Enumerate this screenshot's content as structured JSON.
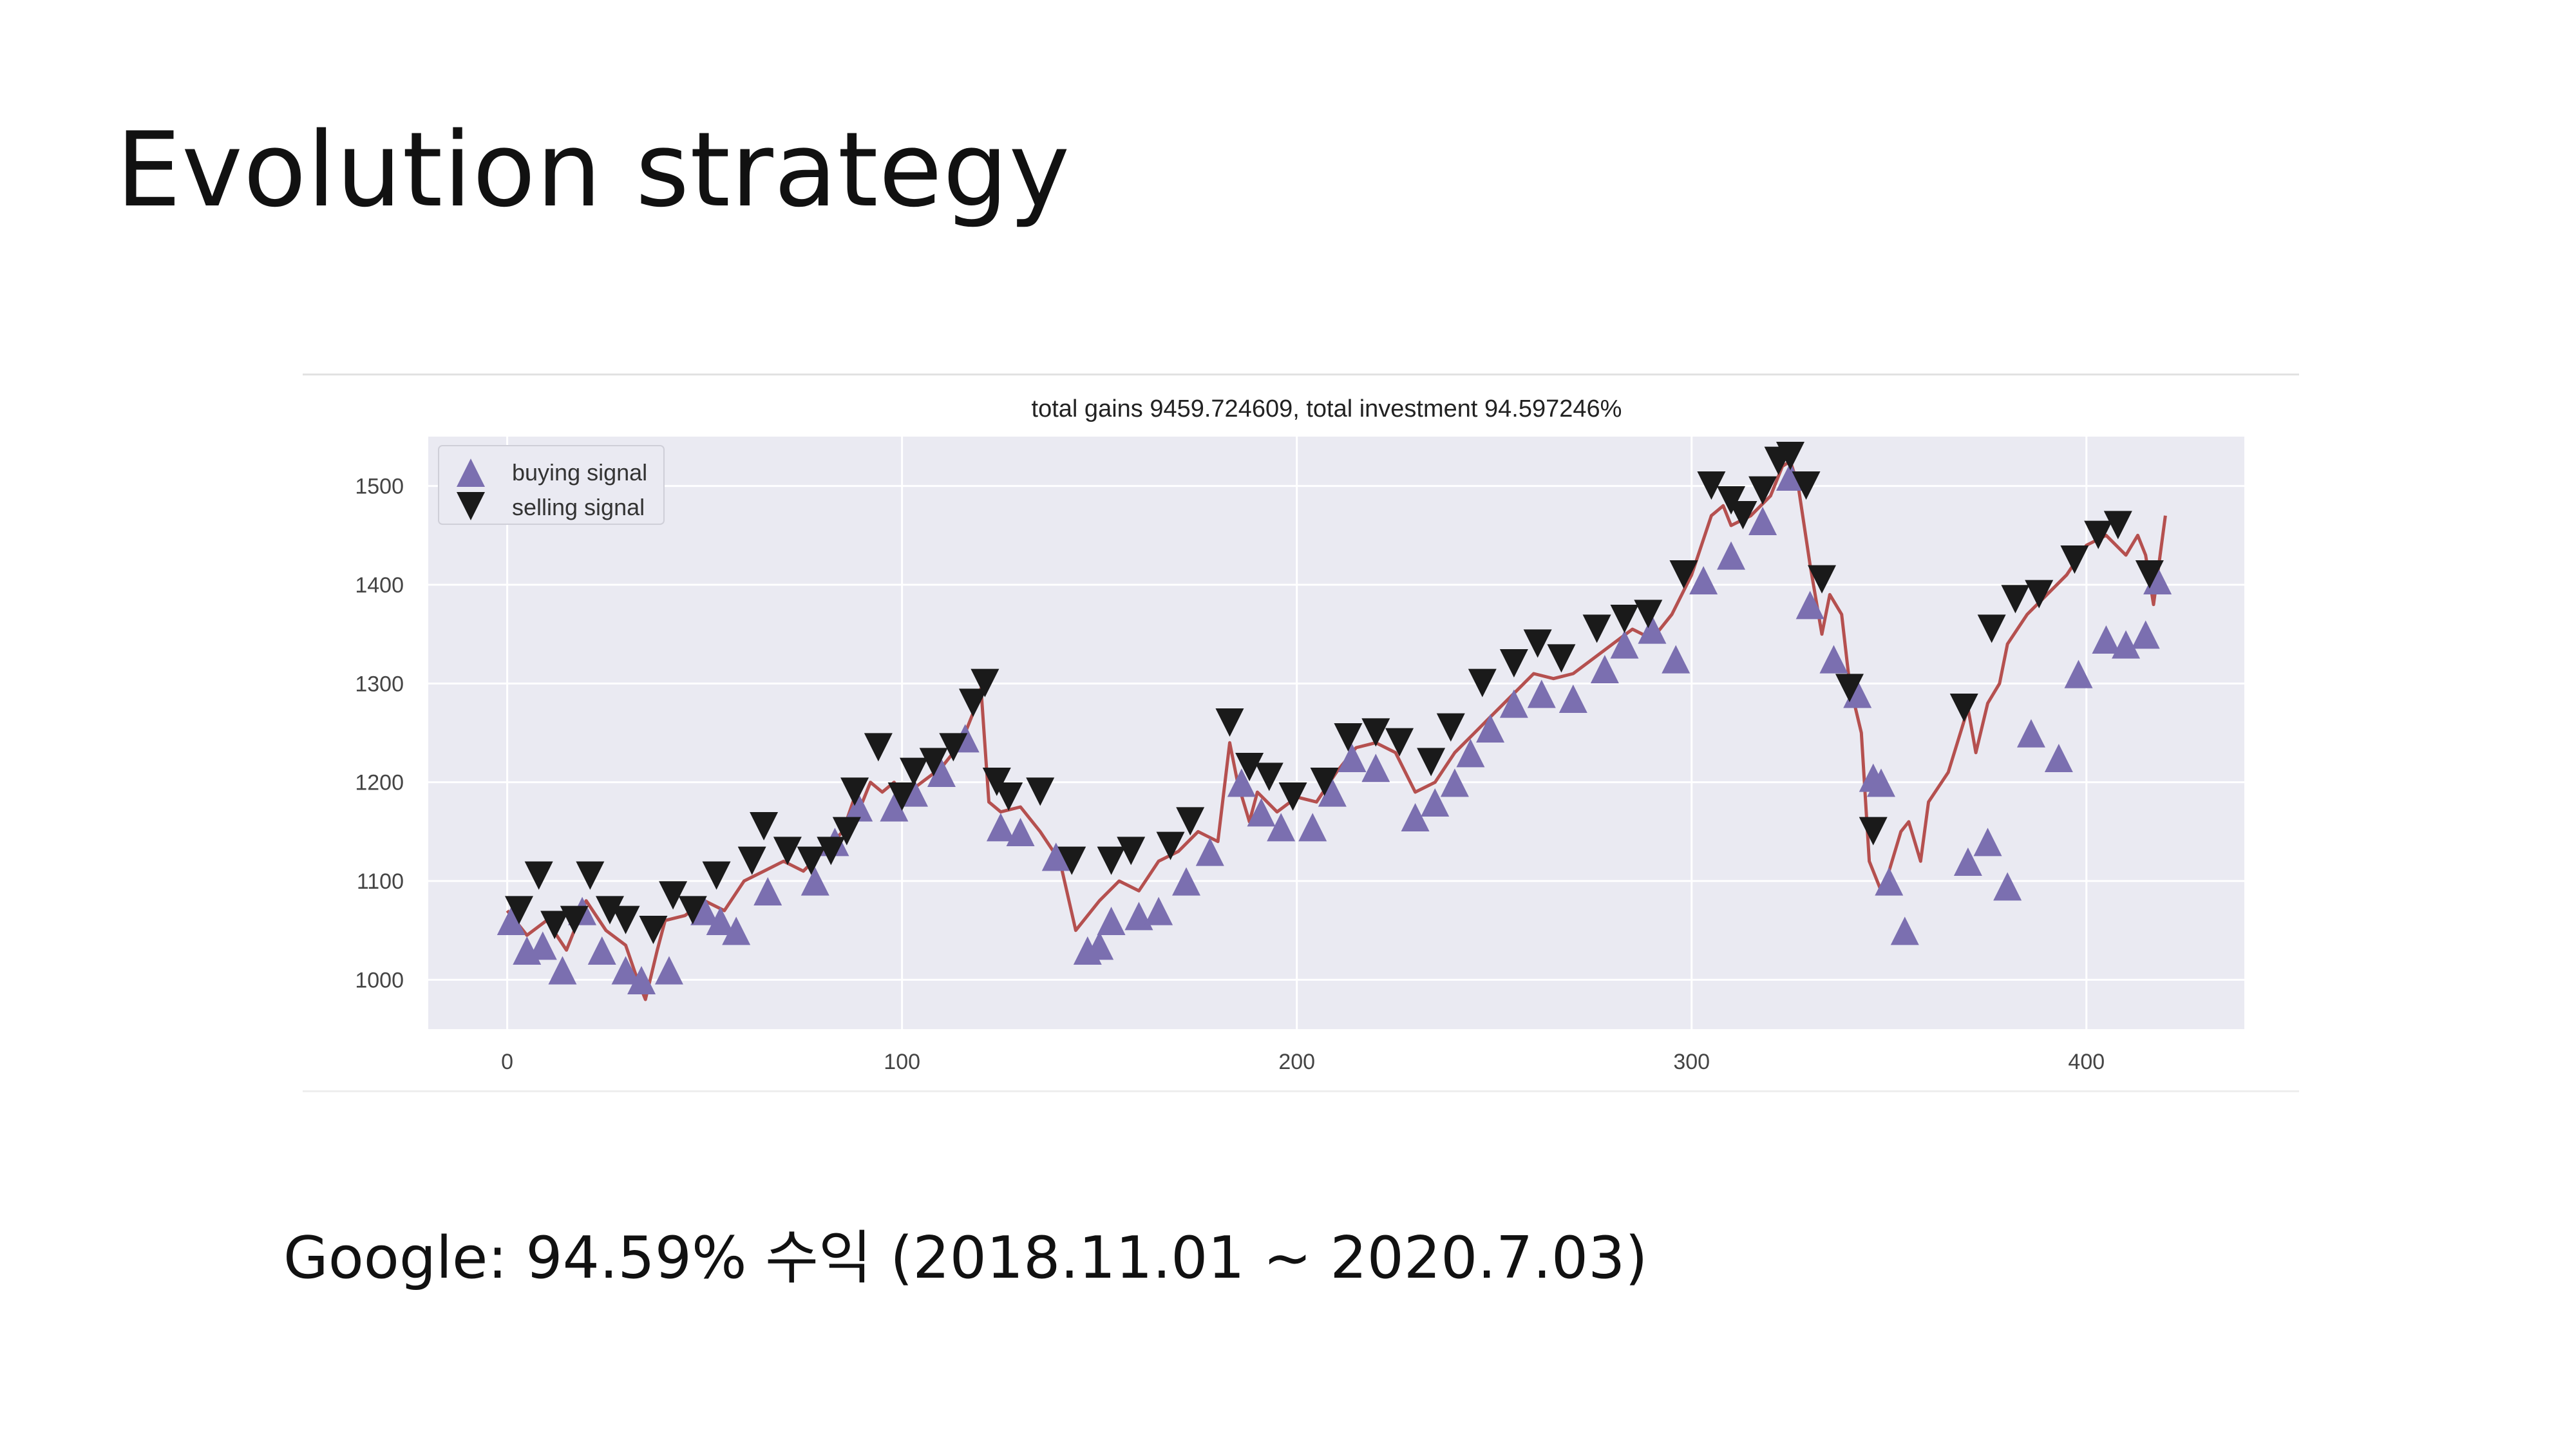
{
  "slide": {
    "title": "Evolution strategy",
    "caption": "Google: 94.59% 수익 (2018.11.01 ~ 2020.7.03)"
  },
  "chart_data": {
    "type": "line",
    "title": "total gains 9459.724609, total investment 94.597246%",
    "xlabel": "",
    "ylabel": "",
    "xlim": [
      -20,
      440
    ],
    "ylim": [
      950,
      1550
    ],
    "xticks": [
      0,
      100,
      200,
      300,
      400
    ],
    "yticks": [
      1000,
      1100,
      1200,
      1300,
      1400,
      1500
    ],
    "grid": true,
    "legend_position": "top-left",
    "colors": {
      "price_line": "#b5504f",
      "buy_marker": "#7b6fb0",
      "sell_marker": "#1a1a1a",
      "plot_bg": "#eaeaf2",
      "grid": "#ffffff"
    },
    "series": [
      {
        "kind": "price",
        "x": [
          0,
          5,
          10,
          15,
          20,
          25,
          30,
          33,
          35,
          38,
          40,
          45,
          50,
          55,
          60,
          65,
          70,
          75,
          80,
          85,
          88,
          90,
          92,
          95,
          98,
          100,
          105,
          110,
          115,
          118,
          120,
          122,
          125,
          130,
          135,
          140,
          144,
          146,
          150,
          155,
          160,
          165,
          170,
          175,
          180,
          183,
          185,
          188,
          190,
          195,
          200,
          205,
          210,
          215,
          220,
          225,
          230,
          235,
          240,
          245,
          250,
          255,
          260,
          265,
          270,
          275,
          280,
          285,
          290,
          295,
          300,
          305,
          308,
          310,
          315,
          320,
          323,
          325,
          327,
          330,
          333,
          335,
          338,
          340,
          343,
          345,
          348,
          350,
          353,
          355,
          358,
          360,
          365,
          370,
          372,
          375,
          378,
          380,
          385,
          390,
          395,
          400,
          405,
          410,
          413,
          415,
          417,
          420
        ],
        "y": [
          1070,
          1045,
          1060,
          1030,
          1080,
          1050,
          1035,
          1000,
          980,
          1030,
          1060,
          1065,
          1080,
          1070,
          1100,
          1110,
          1120,
          1110,
          1130,
          1150,
          1185,
          1180,
          1200,
          1190,
          1200,
          1185,
          1200,
          1215,
          1240,
          1270,
          1295,
          1180,
          1170,
          1175,
          1150,
          1120,
          1050,
          1060,
          1080,
          1100,
          1090,
          1120,
          1130,
          1150,
          1140,
          1240,
          1200,
          1160,
          1190,
          1170,
          1185,
          1180,
          1210,
          1235,
          1240,
          1230,
          1190,
          1200,
          1230,
          1250,
          1270,
          1290,
          1310,
          1305,
          1310,
          1325,
          1340,
          1355,
          1345,
          1370,
          1410,
          1470,
          1480,
          1460,
          1470,
          1490,
          1520,
          1525,
          1500,
          1420,
          1350,
          1390,
          1370,
          1300,
          1250,
          1120,
          1090,
          1110,
          1150,
          1160,
          1120,
          1180,
          1210,
          1275,
          1230,
          1280,
          1300,
          1340,
          1370,
          1390,
          1410,
          1440,
          1450,
          1430,
          1450,
          1430,
          1380,
          1470
        ]
      },
      {
        "name": "buying signal",
        "marker": "triangle-up",
        "x": [
          1,
          5,
          9,
          14,
          19,
          24,
          30,
          34,
          41,
          50,
          54,
          58,
          66,
          78,
          83,
          89,
          98,
          103,
          110,
          116,
          125,
          130,
          139,
          147,
          150,
          153,
          160,
          165,
          172,
          178,
          186,
          191,
          196,
          204,
          209,
          214,
          220,
          230,
          235,
          240,
          244,
          249,
          255,
          262,
          270,
          278,
          283,
          290,
          296,
          303,
          310,
          318,
          325,
          330,
          336,
          342,
          346,
          348,
          350,
          354,
          370,
          375,
          380,
          386,
          393,
          398,
          405,
          410,
          415,
          418
        ],
        "y": [
          1070,
          1040,
          1045,
          1020,
          1080,
          1040,
          1020,
          1010,
          1020,
          1080,
          1070,
          1060,
          1100,
          1110,
          1150,
          1185,
          1185,
          1200,
          1220,
          1255,
          1165,
          1160,
          1135,
          1040,
          1045,
          1070,
          1075,
          1080,
          1110,
          1140,
          1210,
          1180,
          1165,
          1165,
          1200,
          1235,
          1225,
          1175,
          1190,
          1210,
          1240,
          1265,
          1290,
          1300,
          1295,
          1325,
          1350,
          1365,
          1335,
          1415,
          1440,
          1475,
          1520,
          1390,
          1335,
          1300,
          1215,
          1210,
          1110,
          1060,
          1130,
          1150,
          1105,
          1260,
          1235,
          1320,
          1355,
          1350,
          1360,
          1415
        ]
      },
      {
        "name": "selling signal",
        "marker": "triangle-down",
        "x": [
          3,
          8,
          12,
          17,
          21,
          26,
          30,
          37,
          42,
          47,
          53,
          62,
          65,
          71,
          77,
          82,
          86,
          88,
          94,
          100,
          103,
          108,
          113,
          118,
          121,
          124,
          127,
          135,
          143,
          153,
          158,
          168,
          173,
          183,
          188,
          193,
          199,
          207,
          213,
          220,
          226,
          234,
          239,
          247,
          255,
          261,
          267,
          276,
          283,
          289,
          298,
          305,
          310,
          313,
          318,
          322,
          325,
          329,
          333,
          340,
          346,
          369,
          376,
          382,
          388,
          397,
          403,
          408,
          416
        ],
        "y": [
          1060,
          1095,
          1045,
          1050,
          1095,
          1060,
          1050,
          1040,
          1075,
          1060,
          1095,
          1110,
          1145,
          1120,
          1110,
          1120,
          1140,
          1180,
          1225,
          1175,
          1200,
          1210,
          1225,
          1270,
          1290,
          1190,
          1175,
          1180,
          1110,
          1110,
          1120,
          1125,
          1150,
          1250,
          1205,
          1195,
          1175,
          1190,
          1235,
          1240,
          1230,
          1210,
          1245,
          1290,
          1310,
          1330,
          1315,
          1345,
          1355,
          1360,
          1400,
          1490,
          1475,
          1460,
          1485,
          1515,
          1520,
          1490,
          1395,
          1285,
          1140,
          1265,
          1345,
          1375,
          1380,
          1415,
          1440,
          1450,
          1400
        ]
      }
    ]
  }
}
